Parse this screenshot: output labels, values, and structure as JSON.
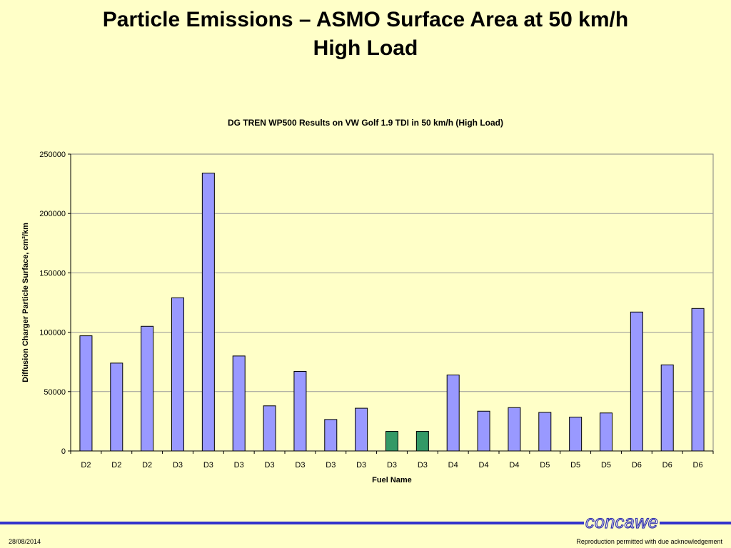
{
  "slide": {
    "title_line1": "Particle Emissions – ASMO Surface Area at 50 km/h",
    "title_line2": "High Load"
  },
  "footer": {
    "date": "28/08/2014",
    "logo": "concawe",
    "note": "Reproduction permitted with due acknowledgement",
    "line_color": "#3333cc"
  },
  "chart_data": {
    "type": "bar",
    "title": "DG TREN WP500 Results on VW Golf 1.9 TDI in 50 km/h (High Load)",
    "xlabel": "Fuel Name",
    "ylabel": "Diffusion Charger Particle Surface, cm²/km",
    "ylim": [
      0,
      250000
    ],
    "yticks": [
      0,
      50000,
      100000,
      150000,
      200000,
      250000
    ],
    "grid": true,
    "legend": "none",
    "categories": [
      "D2",
      "D2",
      "D2",
      "D3",
      "D3",
      "D3",
      "D3",
      "D3",
      "D3",
      "D3",
      "D3",
      "D3",
      "D4",
      "D4",
      "D4",
      "D5",
      "D5",
      "D5",
      "D6",
      "D6",
      "D6"
    ],
    "values": [
      97000,
      74000,
      105000,
      129000,
      234000,
      80000,
      38000,
      67000,
      26500,
      36000,
      16500,
      16500,
      64000,
      33500,
      36500,
      32500,
      28500,
      32000,
      117000,
      72500,
      120000
    ],
    "bar_colors": [
      "#9999ff",
      "#9999ff",
      "#9999ff",
      "#9999ff",
      "#9999ff",
      "#9999ff",
      "#9999ff",
      "#9999ff",
      "#9999ff",
      "#9999ff",
      "#339966",
      "#339966",
      "#9999ff",
      "#9999ff",
      "#9999ff",
      "#9999ff",
      "#9999ff",
      "#9999ff",
      "#9999ff",
      "#9999ff",
      "#9999ff"
    ],
    "plot_background": "#ffffc8",
    "gridline_color": "#999999"
  }
}
